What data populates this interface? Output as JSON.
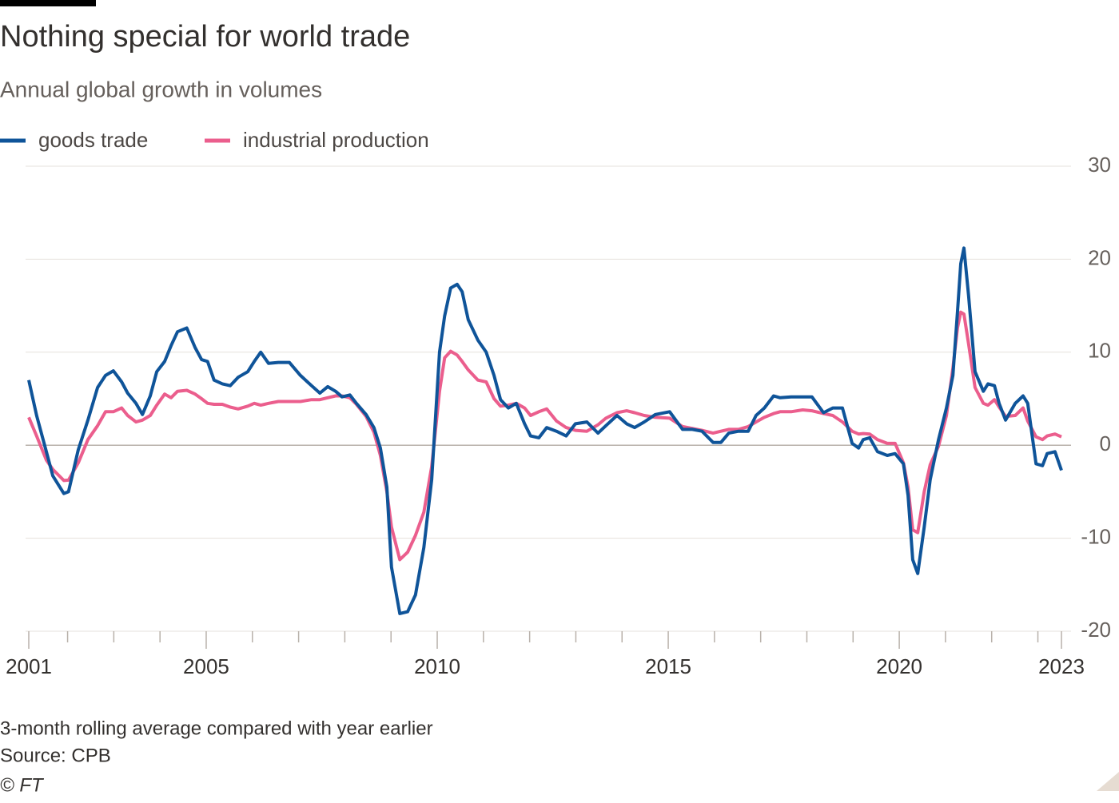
{
  "chart_data": {
    "type": "line",
    "title": "Nothing special for world trade",
    "subtitle": "Annual global growth in volumes",
    "notes": [
      "3-month rolling average compared with year earlier",
      "Source: CPB",
      "© FT"
    ],
    "x": [
      2001.16,
      2001.33,
      2001.54,
      2001.68,
      2001.92,
      2002.02,
      2002.23,
      2002.44,
      2002.65,
      2002.82,
      2002.99,
      2003.17,
      2003.3,
      2003.48,
      2003.62,
      2003.79,
      2003.93,
      2004.1,
      2004.24,
      2004.38,
      2004.58,
      2004.76,
      2004.9,
      2005.03,
      2005.17,
      2005.35,
      2005.52,
      2005.69,
      2005.9,
      2006.04,
      2006.18,
      2006.35,
      2006.56,
      2006.8,
      2007.04,
      2007.28,
      2007.46,
      2007.63,
      2007.8,
      2007.94,
      2008.11,
      2008.25,
      2008.46,
      2008.63,
      2008.77,
      2008.91,
      2009.01,
      2009.19,
      2009.36,
      2009.53,
      2009.71,
      2009.88,
      2010.05,
      2010.16,
      2010.29,
      2010.43,
      2010.54,
      2010.67,
      2010.88,
      2011.06,
      2011.23,
      2011.37,
      2011.54,
      2011.71,
      2011.89,
      2012.02,
      2012.2,
      2012.37,
      2012.58,
      2012.79,
      2012.99,
      2013.24,
      2013.48,
      2013.65,
      2013.89,
      2014.1,
      2014.27,
      2014.48,
      2014.72,
      2015.03,
      2015.31,
      2015.52,
      2015.73,
      2015.97,
      2016.14,
      2016.31,
      2016.52,
      2016.73,
      2016.9,
      2017.08,
      2017.28,
      2017.42,
      2017.66,
      2017.91,
      2018.11,
      2018.36,
      2018.56,
      2018.77,
      2018.98,
      2019.12,
      2019.22,
      2019.36,
      2019.53,
      2019.74,
      2019.91,
      2020.09,
      2020.19,
      2020.29,
      2020.4,
      2020.54,
      2020.67,
      2020.85,
      2021.02,
      2021.16,
      2021.26,
      2021.33,
      2021.4,
      2021.5,
      2021.64,
      2021.82,
      2021.92,
      2022.06,
      2022.16,
      2022.3,
      2022.51,
      2022.68,
      2022.78,
      2022.96,
      2023.1,
      2023.2,
      2023.37,
      2023.51
    ],
    "series": [
      {
        "name": "goods trade",
        "color": "#0f5499",
        "values": [
          7.0,
          3.2,
          -0.7,
          -3.3,
          -5.2,
          -5.0,
          -0.5,
          2.7,
          6.2,
          7.5,
          8.0,
          6.8,
          5.6,
          4.5,
          3.3,
          5.3,
          7.9,
          9.0,
          10.7,
          12.2,
          12.6,
          10.5,
          9.2,
          9.0,
          7.0,
          6.6,
          6.4,
          7.3,
          7.9,
          9.0,
          10.0,
          8.8,
          8.9,
          8.9,
          7.5,
          6.4,
          5.6,
          6.3,
          5.8,
          5.2,
          5.4,
          4.5,
          3.3,
          1.9,
          -0.3,
          -4.5,
          -13.1,
          -18.1,
          -17.9,
          -16.1,
          -11.0,
          -3.7,
          10.0,
          13.9,
          16.9,
          17.3,
          16.5,
          13.5,
          11.3,
          10.0,
          7.5,
          4.9,
          4.0,
          4.5,
          2.3,
          1.0,
          0.8,
          1.9,
          1.5,
          1.0,
          2.3,
          2.5,
          1.3,
          2.1,
          3.2,
          2.3,
          1.9,
          2.5,
          3.3,
          3.6,
          1.7,
          1.7,
          1.5,
          0.3,
          0.3,
          1.3,
          1.5,
          1.5,
          3.2,
          4.0,
          5.3,
          5.1,
          5.2,
          5.2,
          5.2,
          3.5,
          4.0,
          4.0,
          0.2,
          -0.3,
          0.6,
          0.8,
          -0.7,
          -1.1,
          -0.9,
          -2.0,
          -5.4,
          -12.3,
          -13.8,
          -8.8,
          -3.7,
          0.6,
          4.0,
          7.5,
          14.3,
          19.5,
          21.2,
          16.1,
          7.9,
          5.8,
          6.6,
          6.4,
          4.5,
          2.7,
          4.5,
          5.3,
          4.5,
          -2.0,
          -2.2,
          -0.9,
          -0.7,
          -2.7
        ]
      },
      {
        "name": "industrial production",
        "color": "#eb5e8d",
        "values": [
          3.0,
          1.0,
          -1.6,
          -2.6,
          -3.8,
          -3.75,
          -1.9,
          0.6,
          2.1,
          3.6,
          3.6,
          4.0,
          3.2,
          2.5,
          2.7,
          3.2,
          4.3,
          5.5,
          5.1,
          5.8,
          5.9,
          5.5,
          5.0,
          4.5,
          4.4,
          4.4,
          4.1,
          3.9,
          4.2,
          4.5,
          4.3,
          4.5,
          4.7,
          4.7,
          4.7,
          4.9,
          4.9,
          5.1,
          5.3,
          5.3,
          5.1,
          4.4,
          3.1,
          1.4,
          -1.1,
          -5.0,
          -8.8,
          -12.3,
          -11.5,
          -9.7,
          -7.2,
          -2.3,
          5.8,
          9.4,
          10.1,
          9.7,
          9.0,
          8.1,
          7.0,
          6.8,
          5.0,
          4.2,
          4.3,
          4.5,
          4.0,
          3.2,
          3.6,
          3.9,
          2.6,
          1.9,
          1.6,
          1.5,
          2.2,
          2.9,
          3.5,
          3.7,
          3.5,
          3.2,
          3.0,
          2.9,
          2.0,
          1.8,
          1.6,
          1.3,
          1.5,
          1.7,
          1.7,
          2.0,
          2.5,
          3.0,
          3.4,
          3.6,
          3.6,
          3.8,
          3.7,
          3.4,
          3.2,
          2.5,
          1.5,
          1.2,
          1.25,
          1.2,
          0.6,
          0.2,
          0.2,
          -1.9,
          -4.5,
          -9.1,
          -9.4,
          -5.0,
          -2.1,
          -0.1,
          3.2,
          8.3,
          12.6,
          14.3,
          14.1,
          10.9,
          6.2,
          4.5,
          4.3,
          4.9,
          4.1,
          3.1,
          3.2,
          4.0,
          2.6,
          0.9,
          0.6,
          1.0,
          1.2,
          0.9
        ]
      }
    ],
    "xlim": [
      2001.16,
      2023.51
    ],
    "xticks": [
      {
        "value": 2001.16,
        "label": "2001"
      },
      2005,
      2010,
      2015,
      2020,
      {
        "value": 2023.51,
        "label": "2023"
      }
    ],
    "xminorticks": [
      2002,
      2003,
      2004,
      2006,
      2007,
      2008,
      2009,
      2011,
      2012,
      2013,
      2014,
      2016,
      2017,
      2018,
      2019,
      2021,
      2022,
      2023
    ],
    "ylim": [
      -20,
      30
    ],
    "yticks": [
      -20,
      -10,
      0,
      10,
      20,
      30
    ],
    "grid": true,
    "legend": "top"
  }
}
